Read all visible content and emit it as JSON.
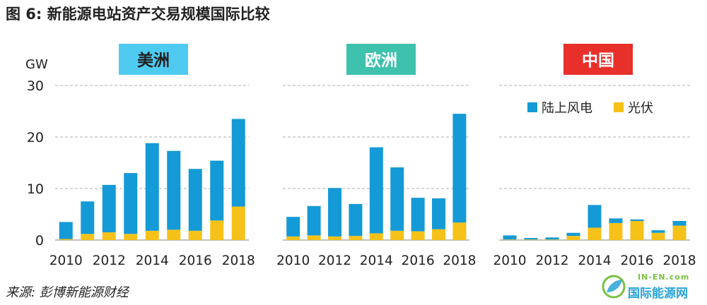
{
  "figure_title": "图 6: 新能源电站资产交易规模国际比较",
  "source": "来源: 彭博新能源财经",
  "watermark": {
    "top": "IN-EN.com",
    "main": "国际能源网"
  },
  "colors": {
    "wind": "#149ad6",
    "solar": "#f6c219",
    "grid": "#bfbfbf"
  },
  "unit_label": "GW",
  "y_ticks": [
    "30",
    "20",
    "10",
    "0"
  ],
  "legend": {
    "wind": "陆上风电",
    "solar": "光伏"
  },
  "chart_data": [
    {
      "type": "bar",
      "stacked": true,
      "title": "美洲",
      "title_color": "#4fcbf2",
      "categories": [
        "2010",
        "2011",
        "2012",
        "2013",
        "2014",
        "2015",
        "2016",
        "2017",
        "2018"
      ],
      "x_tick_labels": [
        "2010",
        "2012",
        "2014",
        "2016",
        "2018"
      ],
      "ylabel": "GW",
      "ylim": [
        0,
        30
      ],
      "grid": true,
      "series": [
        {
          "name": "光伏",
          "values": [
            0.2,
            1.2,
            1.5,
            1.2,
            1.8,
            2.0,
            1.8,
            3.8,
            6.5
          ]
        },
        {
          "name": "陆上风电",
          "values": [
            3.3,
            6.3,
            9.2,
            11.8,
            17.0,
            15.3,
            12.0,
            11.6,
            17.0
          ]
        }
      ]
    },
    {
      "type": "bar",
      "stacked": true,
      "title": "欧洲",
      "title_color": "#3ec1ad",
      "categories": [
        "2010",
        "2011",
        "2012",
        "2013",
        "2014",
        "2015",
        "2016",
        "2017",
        "2018"
      ],
      "x_tick_labels": [
        "2010",
        "2012",
        "2014",
        "2016",
        "2018"
      ],
      "ylim": [
        0,
        30
      ],
      "grid": true,
      "series": [
        {
          "name": "光伏",
          "values": [
            0.7,
            0.9,
            0.7,
            0.8,
            1.3,
            1.8,
            1.7,
            2.1,
            3.4
          ]
        },
        {
          "name": "陆上风电",
          "values": [
            3.8,
            5.7,
            9.4,
            6.2,
            16.7,
            12.3,
            6.5,
            6.0,
            21.1
          ]
        }
      ]
    },
    {
      "type": "bar",
      "stacked": true,
      "title": "中国",
      "title_color": "#e8302b",
      "categories": [
        "2010",
        "2011",
        "2012",
        "2013",
        "2014",
        "2015",
        "2016",
        "2017",
        "2018"
      ],
      "x_tick_labels": [
        "2010",
        "2012",
        "2014",
        "2016",
        "2018"
      ],
      "ylim": [
        0,
        30
      ],
      "grid": true,
      "legend_position": "top-right",
      "series": [
        {
          "name": "光伏",
          "values": [
            0.1,
            0.1,
            0.1,
            0.8,
            2.4,
            3.3,
            3.7,
            1.4,
            2.8
          ]
        },
        {
          "name": "陆上风电",
          "values": [
            0.8,
            0.3,
            0.4,
            0.6,
            4.4,
            0.9,
            0.3,
            0.5,
            0.9
          ]
        }
      ]
    }
  ]
}
